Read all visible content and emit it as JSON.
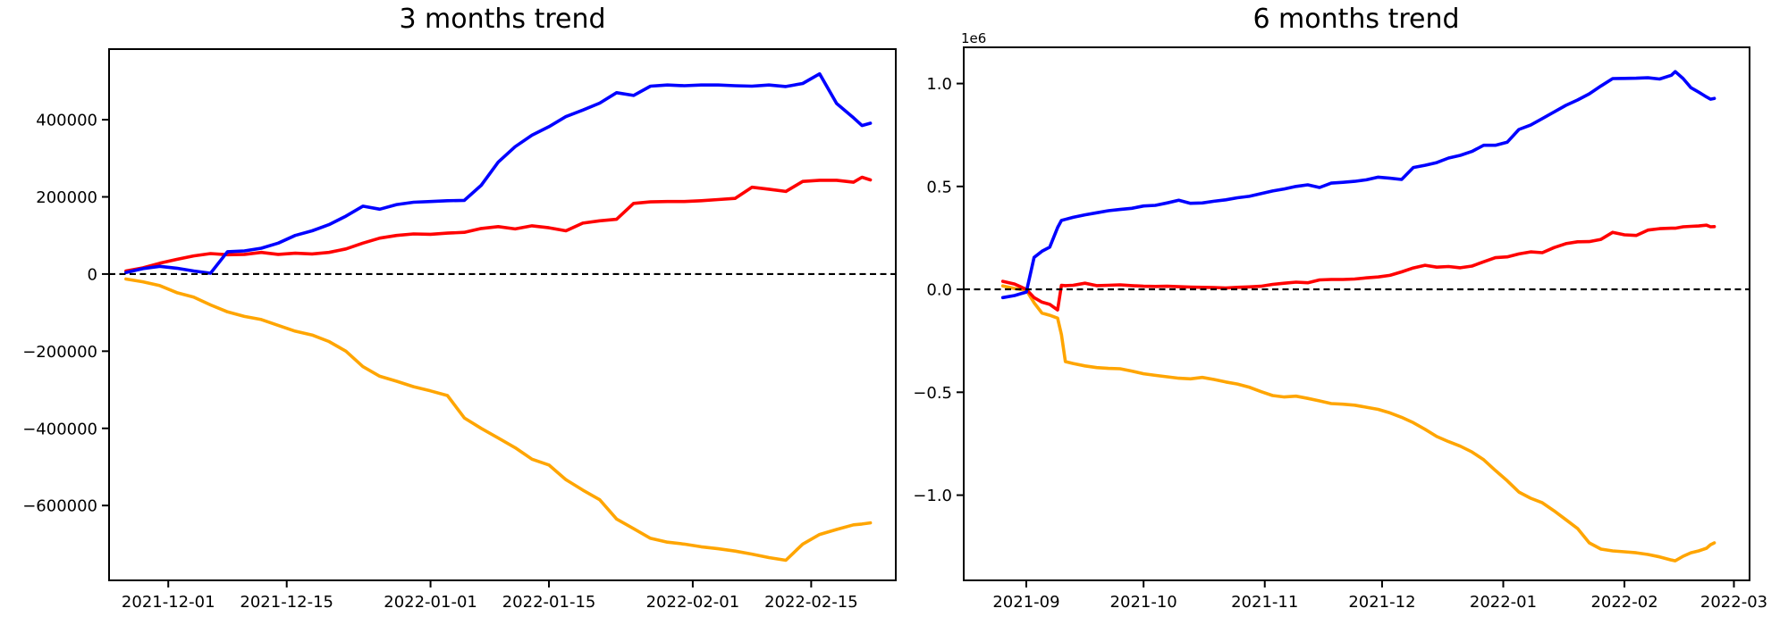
{
  "figure": {
    "background": "#ffffff",
    "axis_color": "#000000"
  },
  "chart_data": [
    {
      "type": "line",
      "title": "3 months trend",
      "xlabel": "",
      "ylabel": "",
      "xlim": [
        "2021-11-24",
        "2022-02-25"
      ],
      "ylim": [
        -794000,
        583000
      ],
      "zero_line": true,
      "legend": "none",
      "grid": false,
      "x_ticks": [
        {
          "date": "2021-12-01",
          "label": "2021-12-01"
        },
        {
          "date": "2021-12-15",
          "label": "2021-12-15"
        },
        {
          "date": "2022-01-01",
          "label": "2022-01-01"
        },
        {
          "date": "2022-01-15",
          "label": "2022-01-15"
        },
        {
          "date": "2022-02-01",
          "label": "2022-02-01"
        },
        {
          "date": "2022-02-15",
          "label": "2022-02-15"
        }
      ],
      "y_ticks": [
        {
          "value": 400000,
          "label": "400000"
        },
        {
          "value": 200000,
          "label": "200000"
        },
        {
          "value": 0,
          "label": "0"
        },
        {
          "value": -200000,
          "label": "−200000"
        },
        {
          "value": -400000,
          "label": "−400000"
        },
        {
          "value": -600000,
          "label": "−600000"
        }
      ],
      "dates": [
        "2021-11-26",
        "2021-11-28",
        "2021-11-30",
        "2021-12-02",
        "2021-12-04",
        "2021-12-06",
        "2021-12-08",
        "2021-12-10",
        "2021-12-12",
        "2021-12-14",
        "2021-12-16",
        "2021-12-18",
        "2021-12-20",
        "2021-12-22",
        "2021-12-24",
        "2021-12-26",
        "2021-12-28",
        "2021-12-30",
        "2022-01-01",
        "2022-01-03",
        "2022-01-05",
        "2022-01-07",
        "2022-01-09",
        "2022-01-11",
        "2022-01-13",
        "2022-01-15",
        "2022-01-17",
        "2022-01-19",
        "2022-01-21",
        "2022-01-23",
        "2022-01-25",
        "2022-01-27",
        "2022-01-29",
        "2022-01-31",
        "2022-02-02",
        "2022-02-04",
        "2022-02-06",
        "2022-02-08",
        "2022-02-10",
        "2022-02-12",
        "2022-02-14",
        "2022-02-16",
        "2022-02-18",
        "2022-02-20",
        "2022-02-21",
        "2022-02-22"
      ],
      "series": [
        {
          "name": "orange",
          "color": "#ffa500",
          "values": [
            -13000,
            -20000,
            -30000,
            -48000,
            -60000,
            -80000,
            -98000,
            -110000,
            -118000,
            -133000,
            -148000,
            -158000,
            -175000,
            -200000,
            -240000,
            -265000,
            -278000,
            -292000,
            -303000,
            -315000,
            -373000,
            -400000,
            -425000,
            -450000,
            -480000,
            -495000,
            -533000,
            -560000,
            -585000,
            -635000,
            -660000,
            -685000,
            -695000,
            -700000,
            -707000,
            -712000,
            -718000,
            -726000,
            -735000,
            -742000,
            -700000,
            -675000,
            -662000,
            -650000,
            -648000,
            -645000
          ]
        },
        {
          "name": "red",
          "color": "#ff0000",
          "values": [
            8000,
            16000,
            28000,
            38000,
            47000,
            53000,
            50000,
            51000,
            56000,
            51000,
            54000,
            52000,
            56000,
            65000,
            80000,
            93000,
            100000,
            104000,
            103000,
            106000,
            108000,
            118000,
            123000,
            117000,
            125000,
            120000,
            112000,
            132000,
            138000,
            142000,
            183000,
            187000,
            188000,
            188000,
            190000,
            193000,
            196000,
            225000,
            220000,
            214000,
            240000,
            243000,
            243000,
            238000,
            251000,
            244000
          ]
        },
        {
          "name": "blue",
          "color": "#0000ff",
          "values": [
            4000,
            14000,
            20000,
            15000,
            8000,
            2000,
            58000,
            60000,
            67000,
            80000,
            100000,
            112000,
            128000,
            150000,
            176000,
            168000,
            180000,
            186000,
            188000,
            190000,
            191000,
            230000,
            290000,
            330000,
            360000,
            382000,
            408000,
            425000,
            443000,
            470000,
            463000,
            487000,
            490000,
            488000,
            490000,
            490000,
            488000,
            487000,
            490000,
            486000,
            494000,
            519000,
            442000,
            405000,
            385000,
            391000
          ]
        }
      ]
    },
    {
      "type": "line",
      "title": "6 months trend",
      "xlabel": "",
      "ylabel": "",
      "y_offset_label": "1e6",
      "xlim": [
        "2021-08-16",
        "2022-03-05"
      ],
      "ylim": [
        -1414000,
        1176000
      ],
      "zero_line": true,
      "legend": "none",
      "grid": false,
      "x_ticks": [
        {
          "date": "2021-09-01",
          "label": "2021-09"
        },
        {
          "date": "2021-10-01",
          "label": "2021-10"
        },
        {
          "date": "2021-11-01",
          "label": "2021-11"
        },
        {
          "date": "2021-12-01",
          "label": "2021-12"
        },
        {
          "date": "2022-01-01",
          "label": "2022-01"
        },
        {
          "date": "2022-02-01",
          "label": "2022-02"
        },
        {
          "date": "2022-03-01",
          "label": "2022-03"
        }
      ],
      "y_ticks": [
        {
          "value": 1000000,
          "label": "1.0"
        },
        {
          "value": 500000,
          "label": "0.5"
        },
        {
          "value": 0,
          "label": "0.0"
        },
        {
          "value": -500000,
          "label": "−0.5"
        },
        {
          "value": -1000000,
          "label": "−1.0"
        }
      ],
      "dates": [
        "2021-08-26",
        "2021-08-29",
        "2021-09-01",
        "2021-09-03",
        "2021-09-05",
        "2021-09-07",
        "2021-09-09",
        "2021-09-10",
        "2021-09-11",
        "2021-09-13",
        "2021-09-16",
        "2021-09-19",
        "2021-09-22",
        "2021-09-25",
        "2021-09-28",
        "2021-10-01",
        "2021-10-04",
        "2021-10-07",
        "2021-10-10",
        "2021-10-13",
        "2021-10-16",
        "2021-10-19",
        "2021-10-22",
        "2021-10-25",
        "2021-10-28",
        "2021-10-31",
        "2021-11-03",
        "2021-11-06",
        "2021-11-09",
        "2021-11-12",
        "2021-11-15",
        "2021-11-18",
        "2021-11-21",
        "2021-11-24",
        "2021-11-27",
        "2021-11-30",
        "2021-12-03",
        "2021-12-06",
        "2021-12-09",
        "2021-12-12",
        "2021-12-15",
        "2021-12-18",
        "2021-12-21",
        "2021-12-24",
        "2021-12-27",
        "2021-12-30",
        "2022-01-02",
        "2022-01-05",
        "2022-01-08",
        "2022-01-11",
        "2022-01-14",
        "2022-01-17",
        "2022-01-20",
        "2022-01-23",
        "2022-01-26",
        "2022-01-29",
        "2022-02-01",
        "2022-02-04",
        "2022-02-07",
        "2022-02-10",
        "2022-02-13",
        "2022-02-14",
        "2022-02-16",
        "2022-02-18",
        "2022-02-20",
        "2022-02-22",
        "2022-02-23",
        "2022-02-24"
      ],
      "series": [
        {
          "name": "orange",
          "color": "#ffa500",
          "values": [
            17000,
            4000,
            -4000,
            -65000,
            -115000,
            -126000,
            -140000,
            -220000,
            -351000,
            -360000,
            -372000,
            -380000,
            -384000,
            -386000,
            -397000,
            -410000,
            -418000,
            -425000,
            -432000,
            -435000,
            -428000,
            -438000,
            -450000,
            -460000,
            -475000,
            -497000,
            -516000,
            -523000,
            -519000,
            -530000,
            -542000,
            -555000,
            -558000,
            -563000,
            -573000,
            -583000,
            -600000,
            -622000,
            -648000,
            -680000,
            -715000,
            -740000,
            -762000,
            -790000,
            -828000,
            -880000,
            -930000,
            -985000,
            -1015000,
            -1037000,
            -1076000,
            -1119000,
            -1162000,
            -1232000,
            -1262000,
            -1271000,
            -1275000,
            -1280000,
            -1288000,
            -1300000,
            -1315000,
            -1319000,
            -1297000,
            -1280000,
            -1271000,
            -1258000,
            -1241000,
            -1232000
          ]
        },
        {
          "name": "red",
          "color": "#ff0000",
          "values": [
            39000,
            26000,
            0,
            -40000,
            -62000,
            -73000,
            -100000,
            20000,
            18000,
            20000,
            30000,
            18000,
            20000,
            22000,
            18000,
            15000,
            14000,
            15000,
            13000,
            11000,
            10000,
            9000,
            7000,
            10000,
            12000,
            15000,
            24000,
            30000,
            35000,
            32000,
            46000,
            48000,
            48000,
            50000,
            56000,
            60000,
            68000,
            85000,
            104000,
            117000,
            108000,
            111000,
            105000,
            113000,
            134000,
            154000,
            158000,
            172000,
            182000,
            178000,
            203000,
            222000,
            231000,
            232000,
            243000,
            277000,
            265000,
            262000,
            288000,
            295000,
            297000,
            297000,
            304000,
            306000,
            308000,
            312000,
            304000,
            305000
          ]
        },
        {
          "name": "blue",
          "color": "#0000ff",
          "values": [
            -40000,
            -30000,
            -13000,
            155000,
            185000,
            205000,
            300000,
            335000,
            340000,
            350000,
            362000,
            372000,
            382000,
            388000,
            394000,
            405000,
            408000,
            420000,
            433000,
            418000,
            420000,
            428000,
            435000,
            445000,
            452000,
            465000,
            478000,
            488000,
            500000,
            508000,
            495000,
            516000,
            520000,
            525000,
            532000,
            545000,
            540000,
            534000,
            592000,
            603000,
            616000,
            638000,
            651000,
            670000,
            700000,
            700000,
            715000,
            777000,
            798000,
            830000,
            862000,
            894000,
            920000,
            950000,
            988000,
            1024000,
            1025000,
            1026000,
            1028000,
            1022000,
            1040000,
            1058000,
            1024000,
            980000,
            958000,
            935000,
            924000,
            928000
          ]
        }
      ]
    }
  ]
}
